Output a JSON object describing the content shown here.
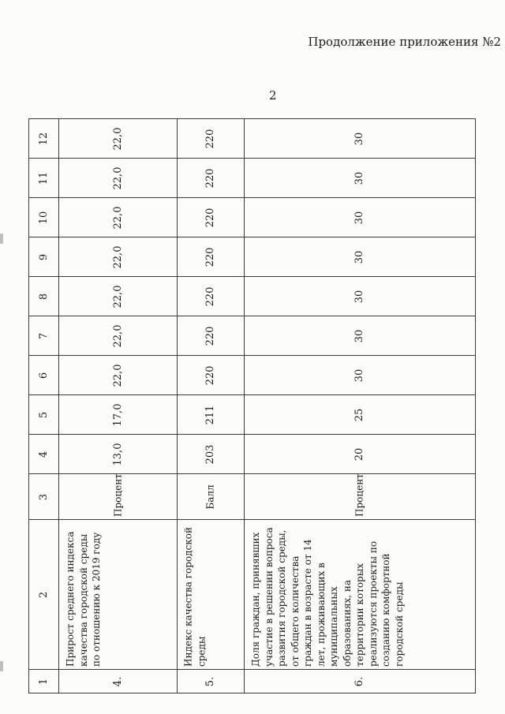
{
  "page": {
    "caption": "Продолжение приложения №2",
    "page_number": "2"
  },
  "table": {
    "column_headers": [
      "1",
      "2",
      "3",
      "4",
      "5",
      "6",
      "7",
      "8",
      "9",
      "10",
      "11",
      "12"
    ],
    "rows": [
      {
        "number": "4.",
        "name": "Прирост среднего индекса качества городской среды по отношению к 2019 году",
        "unit": "Процент",
        "values": [
          "13,0",
          "17,0",
          "22,0",
          "22,0",
          "22,0",
          "22,0",
          "22,0",
          "22,0",
          "22,0"
        ]
      },
      {
        "number": "5.",
        "name": "Индекс качества городской среды",
        "unit": "Балл",
        "values": [
          "203",
          "211",
          "220",
          "220",
          "220",
          "220",
          "220",
          "220",
          "220"
        ]
      },
      {
        "number": "6.",
        "name": "Доля граждан, принявших участие в решении вопроса развития городской среды, от общего количества граждан в возрасте от 14 лет, проживающих в муниципальных образованиях, на территории которых реализуются проекты по созданию комфортной городской среды",
        "unit": "Процент",
        "values": [
          "20",
          "25",
          "30",
          "30",
          "30",
          "30",
          "30",
          "30",
          "30"
        ]
      }
    ]
  }
}
